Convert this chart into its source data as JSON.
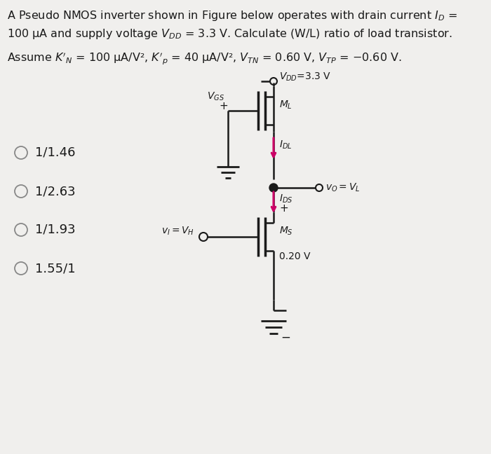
{
  "bg_color": "#f0efed",
  "text_color": "#1a1a1a",
  "arrow_color": "#cc0066",
  "options": [
    "1/1.46",
    "1/2.63",
    "1/1.93",
    "1.55/1"
  ],
  "circuit_lw": 1.8,
  "mosfet_gate_lw": 2.5,
  "fig_width": 7.0,
  "fig_height": 6.48,
  "dpi": 100
}
